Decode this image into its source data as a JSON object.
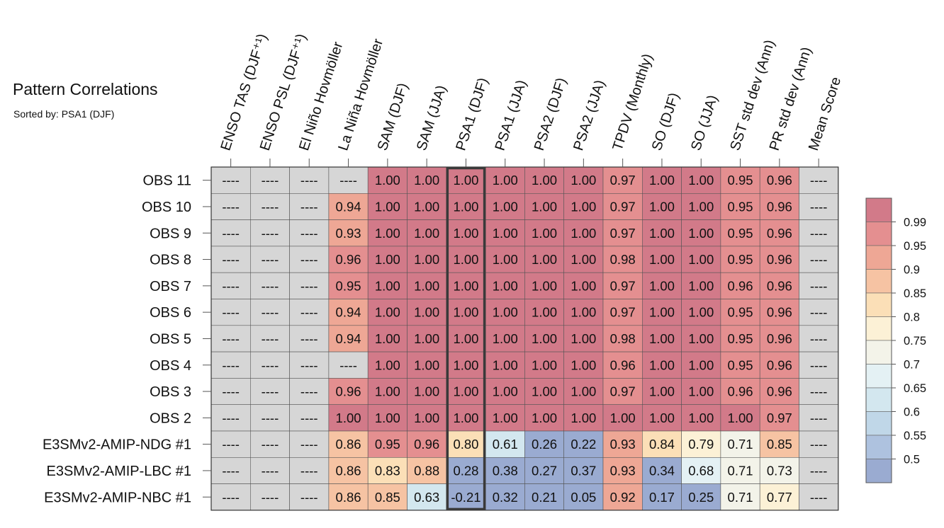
{
  "title": "Pattern Correlations",
  "subtitle": "Sorted by: PSA1 (DJF)",
  "chart_data": {
    "type": "heatmap",
    "columns": [
      "ENSO TAS (DJF⁺¹)",
      "ENSO PSL (DJF⁺¹)",
      "El Niño Hovmöller",
      "La Niña Hovmöller",
      "SAM (DJF)",
      "SAM (JJA)",
      "PSA1 (DJF)",
      "PSA1 (JJA)",
      "PSA2 (DJF)",
      "PSA2 (JJA)",
      "TPDV (Monthly)",
      "SO (DJF)",
      "SO (JJA)",
      "SST std dev (Ann)",
      "PR std dev (Ann)",
      "Mean Score"
    ],
    "rows": [
      "OBS 11",
      "OBS 10",
      "OBS 9",
      "OBS 8",
      "OBS 7",
      "OBS 6",
      "OBS 5",
      "OBS 4",
      "OBS 3",
      "OBS 2",
      "E3SMv2-AMIP-NDG #1",
      "E3SMv2-AMIP-LBC #1",
      "E3SMv2-AMIP-NBC #1"
    ],
    "values": [
      [
        null,
        null,
        null,
        null,
        1.0,
        1.0,
        1.0,
        1.0,
        1.0,
        1.0,
        0.97,
        1.0,
        1.0,
        0.95,
        0.96,
        null
      ],
      [
        null,
        null,
        null,
        0.94,
        1.0,
        1.0,
        1.0,
        1.0,
        1.0,
        1.0,
        0.97,
        1.0,
        1.0,
        0.95,
        0.96,
        null
      ],
      [
        null,
        null,
        null,
        0.93,
        1.0,
        1.0,
        1.0,
        1.0,
        1.0,
        1.0,
        0.97,
        1.0,
        1.0,
        0.95,
        0.96,
        null
      ],
      [
        null,
        null,
        null,
        0.96,
        1.0,
        1.0,
        1.0,
        1.0,
        1.0,
        1.0,
        0.98,
        1.0,
        1.0,
        0.95,
        0.96,
        null
      ],
      [
        null,
        null,
        null,
        0.95,
        1.0,
        1.0,
        1.0,
        1.0,
        1.0,
        1.0,
        0.97,
        1.0,
        1.0,
        0.96,
        0.96,
        null
      ],
      [
        null,
        null,
        null,
        0.94,
        1.0,
        1.0,
        1.0,
        1.0,
        1.0,
        1.0,
        0.97,
        1.0,
        1.0,
        0.95,
        0.96,
        null
      ],
      [
        null,
        null,
        null,
        0.94,
        1.0,
        1.0,
        1.0,
        1.0,
        1.0,
        1.0,
        0.98,
        1.0,
        1.0,
        0.95,
        0.96,
        null
      ],
      [
        null,
        null,
        null,
        null,
        1.0,
        1.0,
        1.0,
        1.0,
        1.0,
        1.0,
        0.96,
        1.0,
        1.0,
        0.95,
        0.96,
        null
      ],
      [
        null,
        null,
        null,
        0.96,
        1.0,
        1.0,
        1.0,
        1.0,
        1.0,
        1.0,
        0.97,
        1.0,
        1.0,
        0.96,
        0.96,
        null
      ],
      [
        null,
        null,
        null,
        1.0,
        1.0,
        1.0,
        1.0,
        1.0,
        1.0,
        1.0,
        1.0,
        1.0,
        1.0,
        1.0,
        0.97,
        null
      ],
      [
        null,
        null,
        null,
        0.86,
        0.95,
        0.96,
        0.8,
        0.61,
        0.26,
        0.22,
        0.93,
        0.84,
        0.79,
        0.71,
        0.85,
        null
      ],
      [
        null,
        null,
        null,
        0.86,
        0.83,
        0.88,
        0.28,
        0.38,
        0.27,
        0.37,
        0.93,
        0.34,
        0.68,
        0.71,
        0.73,
        null
      ],
      [
        null,
        null,
        null,
        0.86,
        0.85,
        0.63,
        -0.21,
        0.32,
        0.21,
        0.05,
        0.92,
        0.17,
        0.25,
        0.71,
        0.77,
        null
      ]
    ],
    "missing_label": "----",
    "highlight_column": "PSA1 (DJF)",
    "colorbar": {
      "ticks": [
        "0.99",
        "0.95",
        "0.9",
        "0.85",
        "0.8",
        "0.75",
        "0.7",
        "0.65",
        "0.6",
        "0.55",
        "0.5"
      ],
      "thresholds": [
        0.5,
        0.55,
        0.6,
        0.65,
        0.7,
        0.75,
        0.8,
        0.85,
        0.9,
        0.95,
        0.99
      ],
      "colors": [
        "#9aabd1",
        "#aec2df",
        "#c0d7e8",
        "#d3e7ef",
        "#e4f1f4",
        "#f3f3e9",
        "#fcf1d6",
        "#fbdfb7",
        "#f6c3a3",
        "#eea795",
        "#e48f90",
        "#d27a89"
      ],
      "missing_color": "#d6d6d6"
    }
  }
}
